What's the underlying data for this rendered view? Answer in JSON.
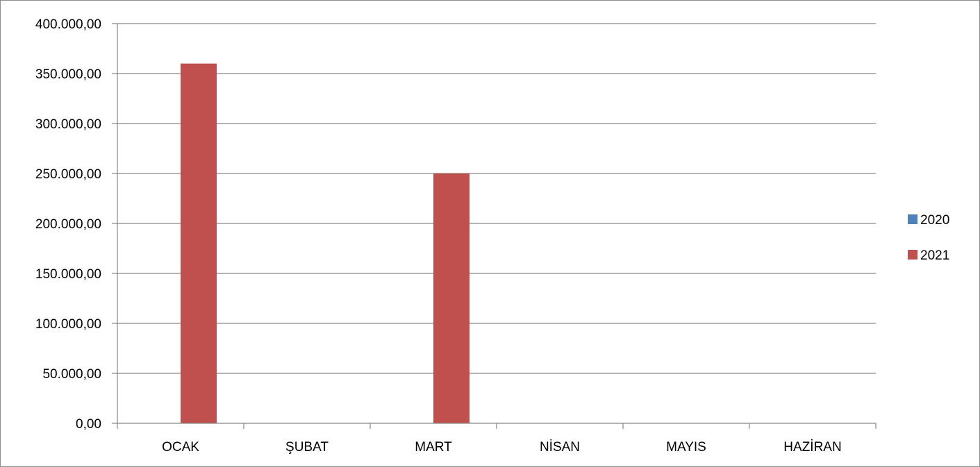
{
  "chart_data": {
    "type": "bar",
    "title": "",
    "xlabel": "",
    "ylabel": "",
    "categories": [
      "OCAK",
      "ŞUBAT",
      "MART",
      "NİSAN",
      "MAYIS",
      "HAZİRAN"
    ],
    "series": [
      {
        "name": "2020",
        "color": "#4f81bd",
        "values": [
          0,
          0,
          0,
          0,
          0,
          0
        ]
      },
      {
        "name": "2021",
        "color": "#c0504d",
        "values": [
          360000,
          0,
          250000,
          0,
          0,
          0
        ]
      }
    ],
    "ylim": [
      0,
      400000
    ],
    "yticks": [
      0,
      50000,
      100000,
      150000,
      200000,
      250000,
      300000,
      350000,
      400000
    ],
    "ytick_labels": [
      "0,00",
      "50.000,00",
      "100.000,00",
      "150.000,00",
      "200.000,00",
      "250.000,00",
      "300.000,00",
      "350.000,00",
      "400.000,00"
    ],
    "grid": true,
    "legend_position": "right"
  }
}
